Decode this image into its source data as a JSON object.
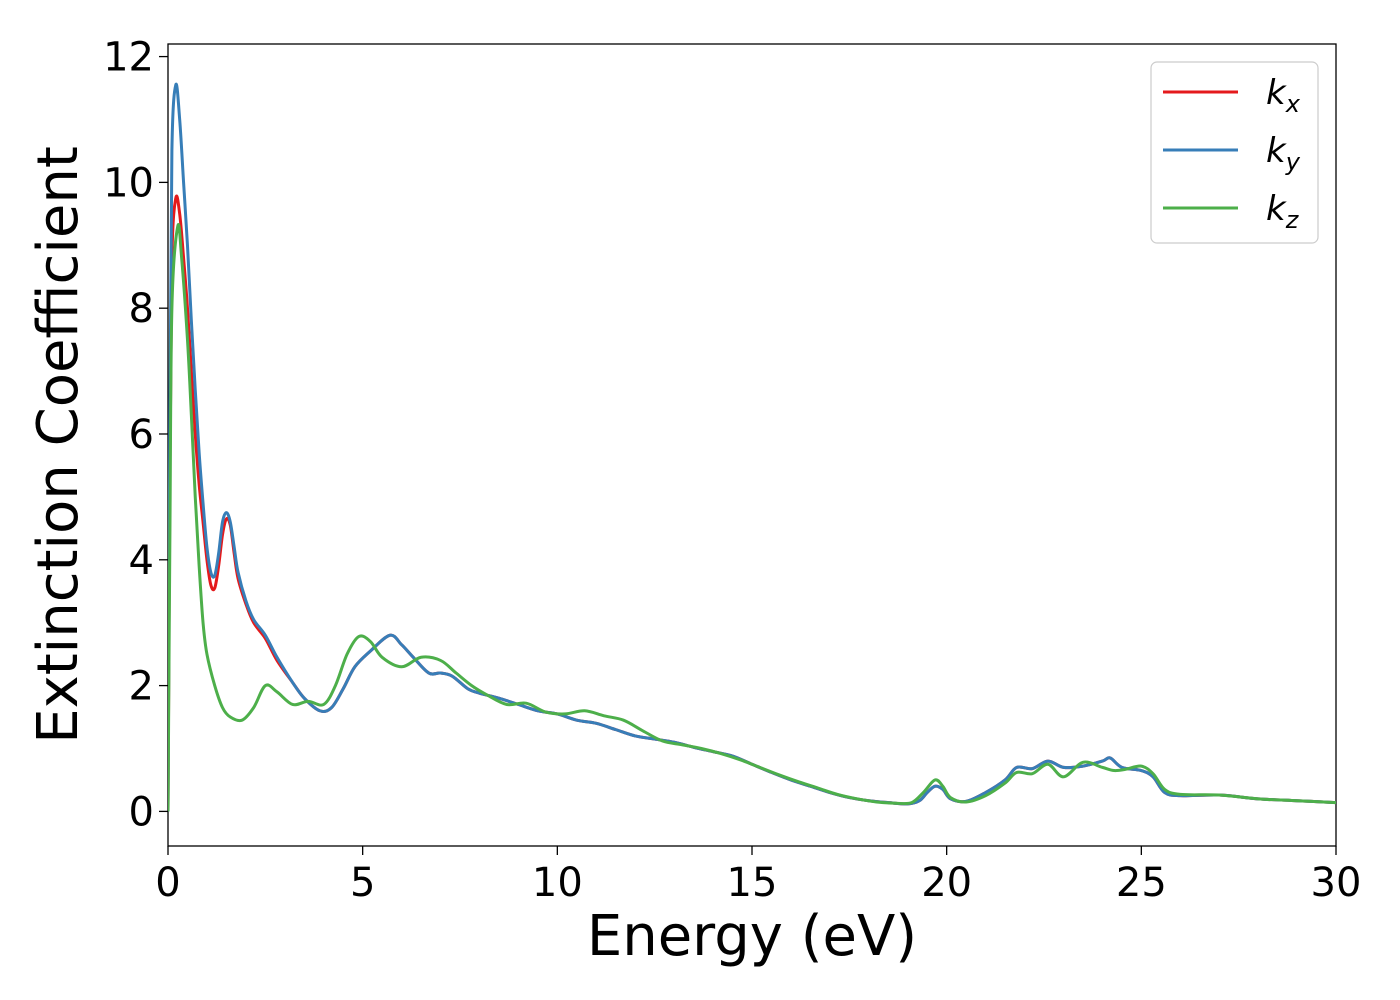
{
  "chart_data": {
    "type": "line",
    "title": "",
    "xlabel": "Energy (eV)",
    "ylabel": "Extinction Coefficient",
    "xlim": [
      0,
      30
    ],
    "ylim": [
      -0.55,
      12.2
    ],
    "xticks": [
      0,
      5,
      10,
      15,
      20,
      25,
      30
    ],
    "yticks": [
      0,
      2,
      4,
      6,
      8,
      10,
      12
    ],
    "grid": false,
    "legend_position": "top-right",
    "series": [
      {
        "name": "k_x",
        "legend_base": "k",
        "legend_sub": "x",
        "color": "#e41a1c",
        "points": [
          [
            0,
            0
          ],
          [
            0.05,
            5.5
          ],
          [
            0.1,
            8.8
          ],
          [
            0.2,
            9.75
          ],
          [
            0.3,
            9.5
          ],
          [
            0.4,
            8.8
          ],
          [
            0.5,
            8.0
          ],
          [
            0.6,
            7.0
          ],
          [
            0.7,
            6.0
          ],
          [
            0.8,
            5.2
          ],
          [
            0.9,
            4.6
          ],
          [
            1.0,
            4.0
          ],
          [
            1.1,
            3.6
          ],
          [
            1.2,
            3.55
          ],
          [
            1.3,
            3.9
          ],
          [
            1.4,
            4.4
          ],
          [
            1.5,
            4.65
          ],
          [
            1.6,
            4.55
          ],
          [
            1.7,
            4.1
          ],
          [
            1.8,
            3.7
          ],
          [
            2.0,
            3.3
          ],
          [
            2.2,
            3.0
          ],
          [
            2.5,
            2.75
          ],
          [
            2.8,
            2.4
          ],
          [
            3.2,
            2.05
          ],
          [
            3.5,
            1.8
          ],
          [
            3.9,
            1.6
          ],
          [
            4.2,
            1.65
          ],
          [
            4.5,
            1.95
          ],
          [
            4.8,
            2.3
          ],
          [
            5.2,
            2.55
          ],
          [
            5.7,
            2.8
          ],
          [
            6.0,
            2.65
          ],
          [
            6.3,
            2.45
          ],
          [
            6.7,
            2.2
          ],
          [
            7.0,
            2.2
          ],
          [
            7.3,
            2.15
          ],
          [
            7.7,
            1.95
          ],
          [
            8.0,
            1.88
          ],
          [
            8.5,
            1.8
          ],
          [
            9.0,
            1.7
          ],
          [
            9.5,
            1.6
          ],
          [
            10.0,
            1.55
          ],
          [
            10.5,
            1.45
          ],
          [
            11.0,
            1.4
          ],
          [
            11.5,
            1.3
          ],
          [
            12.0,
            1.2
          ],
          [
            12.5,
            1.15
          ],
          [
            13.0,
            1.1
          ],
          [
            13.5,
            1.02
          ],
          [
            14.0,
            0.95
          ],
          [
            14.5,
            0.88
          ],
          [
            15.0,
            0.75
          ],
          [
            15.5,
            0.62
          ],
          [
            16.0,
            0.5
          ],
          [
            16.5,
            0.4
          ],
          [
            17.0,
            0.3
          ],
          [
            17.5,
            0.22
          ],
          [
            18.0,
            0.17
          ],
          [
            18.5,
            0.14
          ],
          [
            19.0,
            0.12
          ],
          [
            19.3,
            0.17
          ],
          [
            19.5,
            0.3
          ],
          [
            19.7,
            0.4
          ],
          [
            19.9,
            0.35
          ],
          [
            20.1,
            0.2
          ],
          [
            20.5,
            0.16
          ],
          [
            21.0,
            0.3
          ],
          [
            21.5,
            0.5
          ],
          [
            21.8,
            0.7
          ],
          [
            22.2,
            0.68
          ],
          [
            22.6,
            0.8
          ],
          [
            23.0,
            0.7
          ],
          [
            23.5,
            0.72
          ],
          [
            24.0,
            0.8
          ],
          [
            24.2,
            0.85
          ],
          [
            24.5,
            0.7
          ],
          [
            25.0,
            0.65
          ],
          [
            25.3,
            0.55
          ],
          [
            25.6,
            0.3
          ],
          [
            26.0,
            0.25
          ],
          [
            27.0,
            0.26
          ],
          [
            28.0,
            0.2
          ],
          [
            29.0,
            0.17
          ],
          [
            30.0,
            0.14
          ]
        ]
      },
      {
        "name": "k_y",
        "legend_base": "k",
        "legend_sub": "y",
        "color": "#377eb8",
        "points": [
          [
            0,
            0
          ],
          [
            0.05,
            6.5
          ],
          [
            0.1,
            10.5
          ],
          [
            0.2,
            11.55
          ],
          [
            0.3,
            11.0
          ],
          [
            0.4,
            10.0
          ],
          [
            0.5,
            9.0
          ],
          [
            0.6,
            7.8
          ],
          [
            0.7,
            6.7
          ],
          [
            0.8,
            5.7
          ],
          [
            0.9,
            4.9
          ],
          [
            1.0,
            4.2
          ],
          [
            1.1,
            3.8
          ],
          [
            1.2,
            3.75
          ],
          [
            1.3,
            4.1
          ],
          [
            1.4,
            4.6
          ],
          [
            1.5,
            4.75
          ],
          [
            1.6,
            4.6
          ],
          [
            1.7,
            4.2
          ],
          [
            1.8,
            3.8
          ],
          [
            2.0,
            3.35
          ],
          [
            2.2,
            3.05
          ],
          [
            2.5,
            2.8
          ],
          [
            2.8,
            2.45
          ],
          [
            3.2,
            2.05
          ],
          [
            3.5,
            1.8
          ],
          [
            3.9,
            1.6
          ],
          [
            4.2,
            1.65
          ],
          [
            4.5,
            1.95
          ],
          [
            4.8,
            2.3
          ],
          [
            5.2,
            2.55
          ],
          [
            5.7,
            2.8
          ],
          [
            6.0,
            2.65
          ],
          [
            6.3,
            2.45
          ],
          [
            6.7,
            2.2
          ],
          [
            7.0,
            2.2
          ],
          [
            7.3,
            2.15
          ],
          [
            7.7,
            1.95
          ],
          [
            8.0,
            1.88
          ],
          [
            8.5,
            1.8
          ],
          [
            9.0,
            1.7
          ],
          [
            9.5,
            1.6
          ],
          [
            10.0,
            1.55
          ],
          [
            10.5,
            1.45
          ],
          [
            11.0,
            1.4
          ],
          [
            11.5,
            1.3
          ],
          [
            12.0,
            1.2
          ],
          [
            12.5,
            1.15
          ],
          [
            13.0,
            1.1
          ],
          [
            13.5,
            1.02
          ],
          [
            14.0,
            0.95
          ],
          [
            14.5,
            0.88
          ],
          [
            15.0,
            0.75
          ],
          [
            15.5,
            0.62
          ],
          [
            16.0,
            0.5
          ],
          [
            16.5,
            0.4
          ],
          [
            17.0,
            0.3
          ],
          [
            17.5,
            0.22
          ],
          [
            18.0,
            0.17
          ],
          [
            18.5,
            0.14
          ],
          [
            19.0,
            0.12
          ],
          [
            19.3,
            0.17
          ],
          [
            19.5,
            0.3
          ],
          [
            19.7,
            0.4
          ],
          [
            19.9,
            0.35
          ],
          [
            20.1,
            0.2
          ],
          [
            20.5,
            0.16
          ],
          [
            21.0,
            0.3
          ],
          [
            21.5,
            0.5
          ],
          [
            21.8,
            0.7
          ],
          [
            22.2,
            0.68
          ],
          [
            22.6,
            0.8
          ],
          [
            23.0,
            0.7
          ],
          [
            23.5,
            0.72
          ],
          [
            24.0,
            0.8
          ],
          [
            24.2,
            0.85
          ],
          [
            24.5,
            0.7
          ],
          [
            25.0,
            0.65
          ],
          [
            25.3,
            0.55
          ],
          [
            25.6,
            0.3
          ],
          [
            26.0,
            0.25
          ],
          [
            27.0,
            0.26
          ],
          [
            28.0,
            0.2
          ],
          [
            29.0,
            0.17
          ],
          [
            30.0,
            0.14
          ]
        ]
      },
      {
        "name": "k_z",
        "legend_base": "k",
        "legend_sub": "z",
        "color": "#4daf4a",
        "points": [
          [
            0,
            0
          ],
          [
            0.05,
            4.5
          ],
          [
            0.1,
            8.0
          ],
          [
            0.25,
            9.3
          ],
          [
            0.35,
            8.8
          ],
          [
            0.5,
            7.5
          ],
          [
            0.6,
            6.3
          ],
          [
            0.7,
            5.0
          ],
          [
            0.8,
            3.9
          ],
          [
            0.9,
            3.0
          ],
          [
            1.0,
            2.5
          ],
          [
            1.2,
            2.0
          ],
          [
            1.4,
            1.65
          ],
          [
            1.6,
            1.5
          ],
          [
            1.9,
            1.45
          ],
          [
            2.2,
            1.65
          ],
          [
            2.5,
            2.0
          ],
          [
            2.8,
            1.9
          ],
          [
            3.2,
            1.7
          ],
          [
            3.6,
            1.75
          ],
          [
            4.0,
            1.7
          ],
          [
            4.3,
            2.0
          ],
          [
            4.6,
            2.5
          ],
          [
            4.9,
            2.78
          ],
          [
            5.2,
            2.7
          ],
          [
            5.5,
            2.45
          ],
          [
            6.0,
            2.3
          ],
          [
            6.5,
            2.45
          ],
          [
            7.0,
            2.4
          ],
          [
            7.4,
            2.2
          ],
          [
            7.8,
            2.0
          ],
          [
            8.2,
            1.85
          ],
          [
            8.7,
            1.7
          ],
          [
            9.2,
            1.72
          ],
          [
            9.7,
            1.58
          ],
          [
            10.2,
            1.55
          ],
          [
            10.7,
            1.6
          ],
          [
            11.2,
            1.52
          ],
          [
            11.7,
            1.45
          ],
          [
            12.2,
            1.28
          ],
          [
            12.7,
            1.12
          ],
          [
            13.2,
            1.06
          ],
          [
            13.7,
            1.0
          ],
          [
            14.2,
            0.92
          ],
          [
            14.7,
            0.82
          ],
          [
            15.2,
            0.7
          ],
          [
            15.7,
            0.58
          ],
          [
            16.2,
            0.47
          ],
          [
            16.7,
            0.37
          ],
          [
            17.2,
            0.27
          ],
          [
            17.7,
            0.2
          ],
          [
            18.2,
            0.15
          ],
          [
            18.7,
            0.13
          ],
          [
            19.1,
            0.14
          ],
          [
            19.4,
            0.3
          ],
          [
            19.7,
            0.5
          ],
          [
            19.9,
            0.4
          ],
          [
            20.1,
            0.22
          ],
          [
            20.5,
            0.15
          ],
          [
            21.0,
            0.25
          ],
          [
            21.5,
            0.45
          ],
          [
            21.8,
            0.62
          ],
          [
            22.2,
            0.6
          ],
          [
            22.6,
            0.75
          ],
          [
            23.0,
            0.55
          ],
          [
            23.5,
            0.78
          ],
          [
            24.0,
            0.7
          ],
          [
            24.3,
            0.65
          ],
          [
            24.6,
            0.67
          ],
          [
            25.0,
            0.72
          ],
          [
            25.3,
            0.6
          ],
          [
            25.6,
            0.35
          ],
          [
            26.0,
            0.27
          ],
          [
            27.0,
            0.26
          ],
          [
            28.0,
            0.2
          ],
          [
            29.0,
            0.17
          ],
          [
            30.0,
            0.14
          ]
        ]
      }
    ]
  }
}
